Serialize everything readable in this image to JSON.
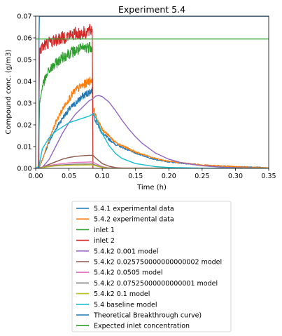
{
  "chart_data": {
    "type": "line",
    "title": "Experiment 5.4",
    "xlabel": "Time (h)",
    "ylabel": "Compound conc. (g/m3)",
    "xlim": [
      0,
      0.35
    ],
    "ylim": [
      0,
      0.07
    ],
    "xticks": [
      0,
      0.05,
      0.1,
      0.15,
      0.2,
      0.25,
      0.3,
      0.35
    ],
    "xtick_labels": [
      "0.00",
      "0.05",
      "0.10",
      "0.15",
      "0.20",
      "0.25",
      "0.30",
      "0.35"
    ],
    "yticks": [
      0,
      0.01,
      0.02,
      0.03,
      0.04,
      0.05,
      0.06,
      0.07
    ],
    "ytick_labels": [
      "0.00",
      "0.01",
      "0.02",
      "0.03",
      "0.04",
      "0.05",
      "0.06",
      "0.07"
    ],
    "grid": false,
    "legend_position": "below",
    "series": [
      {
        "name": "5.4.1 experimental data",
        "color": "#1f77b4",
        "noisy": true,
        "x": [
          0,
          0.005,
          0.01,
          0.02,
          0.03,
          0.04,
          0.05,
          0.06,
          0.07,
          0.08,
          0.085,
          0.086,
          0.09,
          0.1,
          0.12,
          0.15,
          0.18,
          0.2,
          0.25,
          0.3,
          0.35
        ],
        "y": [
          0,
          0,
          0.004,
          0.012,
          0.018,
          0.023,
          0.027,
          0.03,
          0.033,
          0.035,
          0.036,
          0.026,
          0.022,
          0.016,
          0.011,
          0.007,
          0.004,
          0.003,
          0.0015,
          0.0007,
          0.0003
        ]
      },
      {
        "name": "5.4.2 experimental data",
        "color": "#ff7f0e",
        "noisy": true,
        "x": [
          0,
          0.005,
          0.01,
          0.02,
          0.03,
          0.04,
          0.05,
          0.06,
          0.07,
          0.08,
          0.085,
          0.086,
          0.09,
          0.1,
          0.12,
          0.15,
          0.18,
          0.2,
          0.25,
          0.3,
          0.35
        ],
        "y": [
          0,
          0,
          0.004,
          0.013,
          0.021,
          0.027,
          0.032,
          0.036,
          0.038,
          0.04,
          0.041,
          0.029,
          0.024,
          0.018,
          0.012,
          0.0075,
          0.0045,
          0.0032,
          0.0015,
          0.0007,
          0.0003
        ]
      },
      {
        "name": "inlet 1",
        "color": "#2ca02c",
        "noisy": true,
        "x": [
          0,
          0.004,
          0.006,
          0.01,
          0.02,
          0.03,
          0.04,
          0.05,
          0.06,
          0.07,
          0.08,
          0.085,
          0.086,
          0.35
        ],
        "y": [
          0,
          0,
          0.03,
          0.038,
          0.045,
          0.048,
          0.051,
          0.053,
          0.054,
          0.055,
          0.056,
          0.056,
          0,
          0
        ]
      },
      {
        "name": "inlet 2",
        "color": "#d62728",
        "noisy": true,
        "x": [
          0,
          0.004,
          0.006,
          0.01,
          0.02,
          0.03,
          0.04,
          0.05,
          0.06,
          0.07,
          0.08,
          0.085,
          0.086,
          0.35
        ],
        "y": [
          0,
          0,
          0.054,
          0.056,
          0.058,
          0.059,
          0.06,
          0.061,
          0.062,
          0.062,
          0.063,
          0.064,
          0,
          0
        ]
      },
      {
        "name": "5.4.k2 0.001 model",
        "color": "#9467bd",
        "x": [
          0,
          0.01,
          0.02,
          0.03,
          0.04,
          0.05,
          0.06,
          0.07,
          0.08,
          0.086,
          0.09,
          0.095,
          0.1,
          0.11,
          0.12,
          0.13,
          0.14,
          0.15,
          0.16,
          0.18,
          0.2,
          0.22,
          0.25,
          0.28,
          0.3,
          0.35
        ],
        "y": [
          0,
          0.0005,
          0.004,
          0.01,
          0.016,
          0.021,
          0.025,
          0.028,
          0.031,
          0.032,
          0.0332,
          0.0335,
          0.033,
          0.0305,
          0.0265,
          0.022,
          0.018,
          0.0145,
          0.0115,
          0.007,
          0.0042,
          0.0025,
          0.0012,
          0.0005,
          0.0003,
          0.0001
        ]
      },
      {
        "name": "5.4.k2 0.025750000000000002 model",
        "color": "#8c564b",
        "x": [
          0,
          0.005,
          0.01,
          0.02,
          0.03,
          0.04,
          0.05,
          0.06,
          0.07,
          0.08,
          0.086,
          0.09,
          0.1,
          0.11,
          0.12,
          0.13,
          0.35
        ],
        "y": [
          0,
          0,
          0.0006,
          0.0018,
          0.003,
          0.0042,
          0.005,
          0.0055,
          0.0058,
          0.006,
          0.006,
          0.0048,
          0.0022,
          0.001,
          0.0004,
          0.0001,
          0
        ]
      },
      {
        "name": "5.4.k2 0.0505 model",
        "color": "#e377c2",
        "x": [
          0,
          0.005,
          0.01,
          0.02,
          0.03,
          0.04,
          0.05,
          0.06,
          0.07,
          0.08,
          0.086,
          0.09,
          0.1,
          0.11,
          0.35
        ],
        "y": [
          0,
          0,
          0.0005,
          0.0013,
          0.0018,
          0.0022,
          0.0025,
          0.0027,
          0.0028,
          0.0029,
          0.003,
          0.0022,
          0.0008,
          0.0002,
          0
        ]
      },
      {
        "name": "5.4.k2 0.07525000000000001 model",
        "color": "#7f7f7f",
        "x": [
          0,
          0.005,
          0.01,
          0.02,
          0.03,
          0.04,
          0.05,
          0.06,
          0.07,
          0.08,
          0.086,
          0.09,
          0.1,
          0.11,
          0.35
        ],
        "y": [
          0,
          0,
          0.0004,
          0.001,
          0.0014,
          0.0016,
          0.0018,
          0.0019,
          0.002,
          0.002,
          0.002,
          0.0015,
          0.0005,
          0.0001,
          0
        ]
      },
      {
        "name": "5.4.k2 0.1 model",
        "color": "#bcbd22",
        "x": [
          0,
          0.005,
          0.01,
          0.02,
          0.03,
          0.04,
          0.05,
          0.06,
          0.07,
          0.08,
          0.086,
          0.09,
          0.1,
          0.11,
          0.35
        ],
        "y": [
          0,
          0,
          0.0003,
          0.0008,
          0.0011,
          0.0013,
          0.0014,
          0.0015,
          0.0015,
          0.0016,
          0.0016,
          0.0012,
          0.0004,
          0.0001,
          0
        ]
      },
      {
        "name": "5.4 baseline model",
        "color": "#17becf",
        "x": [
          0,
          0.005,
          0.01,
          0.02,
          0.03,
          0.04,
          0.05,
          0.06,
          0.07,
          0.08,
          0.086,
          0.09,
          0.095,
          0.1,
          0.11,
          0.12,
          0.13,
          0.15,
          0.18,
          0.2,
          0.25,
          0.3,
          0.35
        ],
        "y": [
          0,
          0.001,
          0.009,
          0.014,
          0.017,
          0.019,
          0.021,
          0.022,
          0.023,
          0.024,
          0.025,
          0.0235,
          0.02,
          0.016,
          0.0105,
          0.0068,
          0.0045,
          0.0022,
          0.0008,
          0.0004,
          0.0001,
          0,
          0
        ]
      },
      {
        "name": "Theoretical Breakthrough curve)",
        "color": "#1f77b4",
        "x": [
          0,
          0.0048,
          0.005,
          0.0055,
          0.35
        ],
        "y": [
          0,
          0,
          0.06,
          0.07,
          0.07
        ]
      },
      {
        "name": "Expected inlet concentration",
        "color": "#2ca02c",
        "x": [
          0,
          0.35
        ],
        "y": [
          0.0595,
          0.0595
        ]
      }
    ]
  }
}
